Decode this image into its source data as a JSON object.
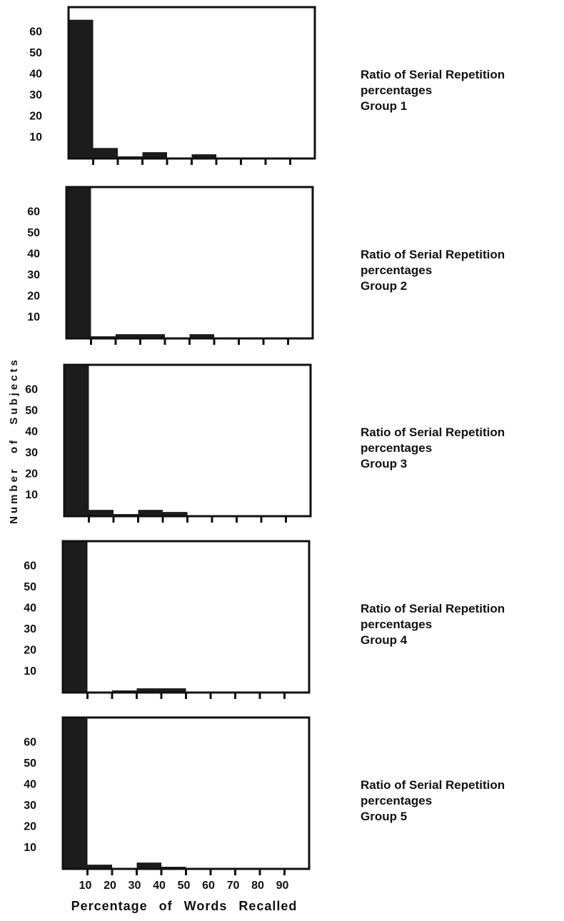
{
  "chart_data": [
    {
      "type": "histogram",
      "title": "Ratio of Serial Repetition percentages",
      "subtitle": "Group 1",
      "bins": [
        0,
        10,
        20,
        30,
        40,
        50,
        60,
        70,
        80,
        90,
        100
      ],
      "counts": [
        66,
        5,
        1,
        3,
        0,
        2,
        0,
        0,
        0,
        0
      ],
      "color": "#1c1c1c",
      "xlim": [
        0,
        100
      ],
      "ylim": [
        0,
        72
      ],
      "yticks": [
        10,
        20,
        30,
        40,
        50,
        60
      ]
    },
    {
      "type": "histogram",
      "title": "Ratio of Serial Repetition percentages",
      "subtitle": "Group 2",
      "bins": [
        0,
        10,
        20,
        30,
        40,
        50,
        60,
        70,
        80,
        90,
        100
      ],
      "counts": [
        72,
        1,
        2,
        2,
        0,
        2,
        0,
        0,
        0,
        0
      ],
      "color": "#1c1c1c",
      "xlim": [
        0,
        100
      ],
      "ylim": [
        0,
        72
      ],
      "yticks": [
        10,
        20,
        30,
        40,
        50,
        60
      ]
    },
    {
      "type": "histogram",
      "title": "Ratio of Serial Repetition percentages",
      "subtitle": "Group 3",
      "ylabel": "Number of Subjects",
      "bins": [
        0,
        10,
        20,
        30,
        40,
        50,
        60,
        70,
        80,
        90,
        100
      ],
      "counts": [
        72,
        3,
        1,
        3,
        2,
        0,
        0,
        0,
        0,
        0
      ],
      "color": "#1c1c1c",
      "xlim": [
        0,
        100
      ],
      "ylim": [
        0,
        72
      ],
      "yticks": [
        10,
        20,
        30,
        40,
        50,
        60
      ]
    },
    {
      "type": "histogram",
      "title": "Ratio of Serial Repetition percentages",
      "subtitle": "Group 4",
      "bins": [
        0,
        10,
        20,
        30,
        40,
        50,
        60,
        70,
        80,
        90,
        100
      ],
      "counts": [
        72,
        0,
        1,
        2,
        2,
        0,
        0,
        0,
        0,
        0
      ],
      "color": "#1c1c1c",
      "xlim": [
        0,
        100
      ],
      "ylim": [
        0,
        72
      ],
      "yticks": [
        10,
        20,
        30,
        40,
        50,
        60
      ]
    },
    {
      "type": "histogram",
      "title": "Ratio of Serial Repetition percentages",
      "subtitle": "Group 5",
      "xlabel": "Percentage of Words Recalled",
      "bins": [
        0,
        10,
        20,
        30,
        40,
        50,
        60,
        70,
        80,
        90,
        100
      ],
      "counts": [
        72,
        2,
        0,
        3,
        1,
        0,
        0,
        0,
        0,
        0
      ],
      "color": "#1c1c1c",
      "xlim": [
        0,
        100
      ],
      "ylim": [
        0,
        72
      ],
      "yticks": [
        10,
        20,
        30,
        40,
        50,
        60
      ],
      "xticks": [
        10,
        20,
        30,
        40,
        50,
        60,
        70,
        80,
        90
      ]
    }
  ]
}
